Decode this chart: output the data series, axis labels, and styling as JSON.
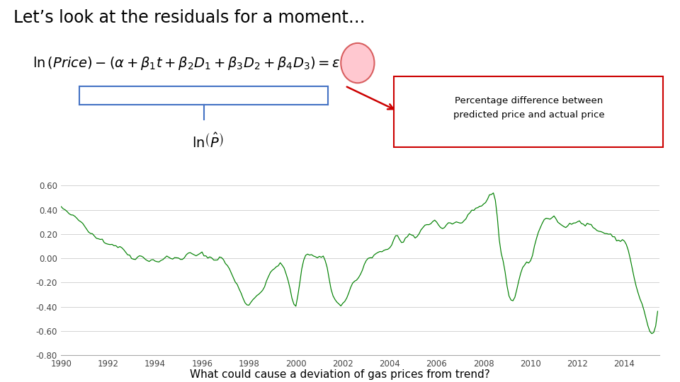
{
  "title": "Let’s look at the residuals for a moment…",
  "annotation_text": "Percentage difference between\npredicted price and actual price",
  "bottom_text": "What could cause a deviation of gas prices from trend?",
  "line_color": "#008000",
  "background_color": "#ffffff",
  "xlim": [
    1990,
    2015.5
  ],
  "ylim": [
    -0.8,
    0.65
  ],
  "yticks": [
    -0.8,
    -0.6,
    -0.4,
    -0.2,
    0.0,
    0.2,
    0.4,
    0.6
  ],
  "xticks": [
    1990,
    1992,
    1994,
    1996,
    1998,
    2000,
    2002,
    2004,
    2006,
    2008,
    2010,
    2012,
    2014
  ],
  "annotation_box_color": "#cc0000",
  "ellipse_color": "#ffb6b6",
  "bracket_color": "#4472c4",
  "anchor_years": [
    1990.0,
    1990.2,
    1991.0,
    1991.5,
    1992.0,
    1992.5,
    1993.0,
    1993.5,
    1994.0,
    1994.5,
    1995.0,
    1995.3,
    1995.5,
    1995.8,
    1996.0,
    1996.3,
    1996.7,
    1997.0,
    1997.3,
    1997.7,
    1998.0,
    1998.3,
    1998.5,
    1998.7,
    1999.0,
    1999.3,
    1999.5,
    1999.7,
    2000.0,
    2000.2,
    2000.5,
    2000.8,
    2001.0,
    2001.3,
    2001.5,
    2001.8,
    2002.0,
    2002.3,
    2002.7,
    2003.0,
    2003.3,
    2003.7,
    2004.0,
    2004.3,
    2004.5,
    2004.7,
    2005.0,
    2005.3,
    2005.7,
    2006.0,
    2006.3,
    2006.5,
    2006.7,
    2007.0,
    2007.3,
    2007.7,
    2008.0,
    2008.2,
    2008.4,
    2008.5,
    2008.7,
    2008.9,
    2009.0,
    2009.2,
    2009.5,
    2009.7,
    2010.0,
    2010.2,
    2010.5,
    2010.7,
    2011.0,
    2011.3,
    2011.5,
    2011.7,
    2012.0,
    2012.3,
    2012.5,
    2012.7,
    2013.0,
    2013.3,
    2013.7,
    2014.0,
    2014.2,
    2014.4,
    2014.6,
    2014.8,
    2015.0,
    2015.2,
    2015.4
  ],
  "anchor_vals": [
    0.42,
    0.38,
    0.28,
    0.18,
    0.13,
    0.09,
    0.02,
    0.01,
    -0.02,
    0.0,
    0.0,
    0.02,
    0.03,
    0.02,
    0.03,
    0.01,
    0.0,
    -0.03,
    -0.15,
    -0.3,
    -0.38,
    -0.3,
    -0.27,
    -0.22,
    -0.1,
    -0.05,
    -0.1,
    -0.2,
    -0.4,
    -0.15,
    0.03,
    0.03,
    0.02,
    -0.05,
    -0.25,
    -0.37,
    -0.38,
    -0.25,
    -0.15,
    -0.03,
    0.02,
    0.05,
    0.08,
    0.2,
    0.12,
    0.16,
    0.17,
    0.22,
    0.3,
    0.3,
    0.25,
    0.3,
    0.28,
    0.3,
    0.32,
    0.4,
    0.45,
    0.5,
    0.53,
    0.5,
    0.1,
    -0.08,
    -0.22,
    -0.35,
    -0.2,
    -0.05,
    -0.02,
    0.12,
    0.3,
    0.32,
    0.32,
    0.28,
    0.25,
    0.3,
    0.32,
    0.28,
    0.28,
    0.25,
    0.22,
    0.2,
    0.15,
    0.14,
    0.05,
    -0.15,
    -0.3,
    -0.42,
    -0.55,
    -0.63,
    -0.47
  ]
}
